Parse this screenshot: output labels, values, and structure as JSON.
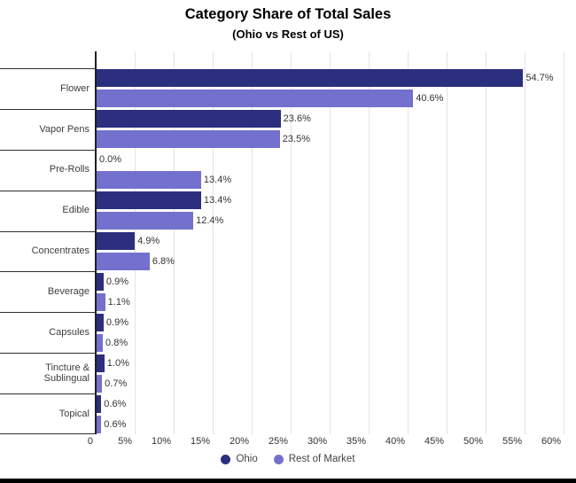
{
  "title": "Category Share of Total Sales",
  "subtitle": "(Ohio vs Rest of US)",
  "colors": {
    "ohio": "#2B2F7E",
    "rest_of_market": "#7470CE",
    "gridline": "#e3e3e3",
    "axis": "#1f1f1f",
    "separator": "#2e2e2e"
  },
  "legend": {
    "items": [
      {
        "label": "Ohio",
        "color": "#2B2F7E"
      },
      {
        "label": "Rest of Market",
        "color": "#7470CE"
      }
    ],
    "position": "bottom"
  },
  "chart_data": {
    "type": "bar",
    "orientation": "horizontal",
    "title": "Category Share of Total Sales",
    "subtitle": "(Ohio vs Rest of US)",
    "categories": [
      "Flower",
      "Vapor Pens",
      "Pre-Rolls",
      "Edible",
      "Concentrates",
      "Beverage",
      "Capsules",
      "Tincture & Sublingual",
      "Topical"
    ],
    "series": [
      {
        "name": "Ohio",
        "color": "#2B2F7E",
        "values": [
          54.7,
          23.6,
          0.0,
          13.4,
          4.9,
          0.9,
          0.9,
          1.0,
          0.6
        ]
      },
      {
        "name": "Rest of Market",
        "color": "#7470CE",
        "values": [
          40.6,
          23.5,
          13.4,
          12.4,
          6.8,
          1.1,
          0.8,
          0.7,
          0.6
        ]
      }
    ],
    "value_label_format": "percent_one_decimal",
    "x_ticks": [
      "0",
      "5%",
      "10%",
      "15%",
      "20%",
      "25%",
      "30%",
      "35%",
      "40%",
      "45%",
      "50%",
      "55%",
      "60%"
    ],
    "x_tick_values": [
      0,
      5,
      10,
      15,
      20,
      25,
      30,
      35,
      40,
      45,
      50,
      55,
      60
    ],
    "xlim": [
      0,
      60
    ],
    "grid": true,
    "legend_position": "bottom"
  }
}
